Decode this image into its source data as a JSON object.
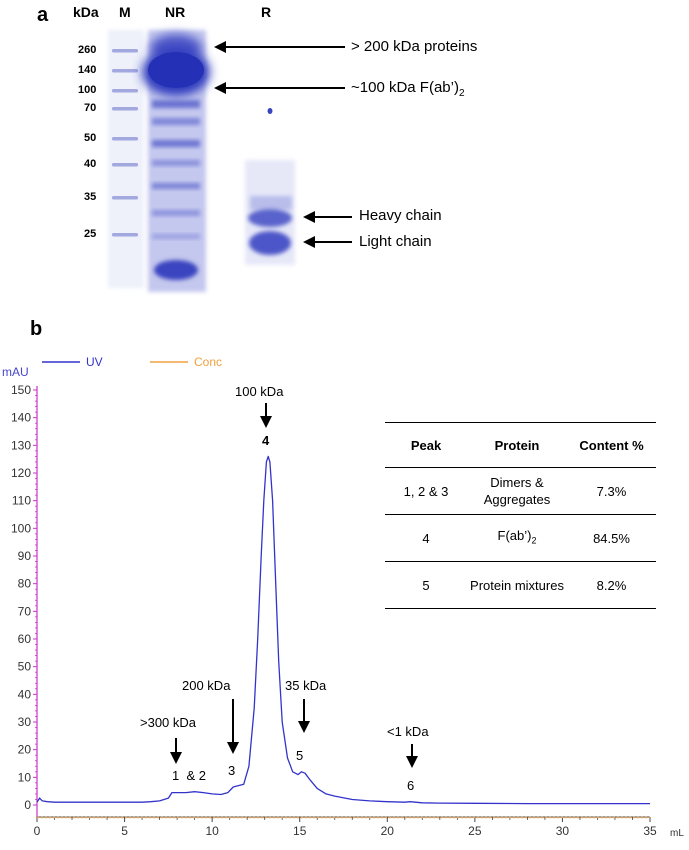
{
  "panel_a": {
    "label": "a",
    "kda_header": "kDa",
    "lane_labels": {
      "marker": "M",
      "non_reduced": "NR",
      "reduced": "R"
    },
    "marker_sizes": [
      "260",
      "140",
      "100",
      "70",
      "50",
      "40",
      "35",
      "25"
    ],
    "annotations": {
      "over200": "> 200 kDa proteins",
      "fab2_prefix": "~100 kDa F(ab’)",
      "fab2_sub": "2",
      "heavy": "Heavy chain",
      "light": "Light chain"
    }
  },
  "panel_b": {
    "label": "b",
    "legend": [
      {
        "name": "UV",
        "color": "#3333cc"
      },
      {
        "name": "Conc",
        "color": "#f0a040"
      }
    ],
    "table": {
      "headers": [
        "Peak",
        "Protein",
        "Content %"
      ],
      "rows": [
        {
          "peak": "1, 2 & 3",
          "protein": "Dimers & Aggregates",
          "content": "7.3%"
        },
        {
          "peak": "4",
          "protein_prefix": "F(ab’)",
          "protein_sub": "2",
          "content": "84.5%"
        },
        {
          "peak": "5",
          "protein": "Protein mixtures",
          "content": "8.2%"
        }
      ]
    },
    "arrow_labels": {
      "kda300": ">300 kDa",
      "kda200": "200 kDa",
      "kda100": "100 kDa",
      "kda35": "35 kDa",
      "kda1": "<1 kDa"
    },
    "peak_numbers": {
      "p12": "1  & 2",
      "p3": "3",
      "p4": "4",
      "p5": "5",
      "p6": "6"
    }
  },
  "chart_data": {
    "type": "line",
    "xlabel": "mL",
    "ylabel": "mAU",
    "xlim": [
      0,
      35
    ],
    "ylim": [
      0,
      150
    ],
    "xticks": [
      0,
      5,
      10,
      15,
      20,
      25,
      30,
      35
    ],
    "yticks": [
      0,
      10,
      20,
      30,
      40,
      50,
      60,
      70,
      80,
      90,
      100,
      110,
      120,
      130,
      140,
      150
    ],
    "grid": false,
    "legend_position": "top-left",
    "series": [
      {
        "name": "UV",
        "color": "#3333cc",
        "x": [
          0,
          0.15,
          0.3,
          0.6,
          1,
          2,
          3,
          4,
          5,
          6,
          6.5,
          7,
          7.5,
          7.7,
          8,
          8.5,
          9,
          9.5,
          10,
          10.5,
          10.9,
          11.2,
          11.5,
          11.8,
          12.1,
          12.4,
          12.6,
          12.8,
          12.95,
          13.1,
          13.2,
          13.3,
          13.45,
          13.6,
          13.8,
          14.0,
          14.3,
          14.6,
          14.9,
          15.1,
          15.3,
          15.6,
          16,
          16.5,
          17,
          18,
          19,
          20,
          21,
          21.3,
          21.6,
          22,
          23,
          25,
          28,
          30,
          32,
          34,
          35
        ],
        "y": [
          1,
          2.5,
          1.5,
          1.2,
          1,
          1,
          1,
          1,
          1,
          1,
          1.2,
          1.5,
          2.5,
          4.5,
          4.5,
          4.5,
          4.8,
          4.5,
          4,
          3.8,
          4.5,
          6.5,
          7,
          7.5,
          14,
          35,
          60,
          90,
          110,
          124,
          126,
          124,
          110,
          85,
          52,
          30,
          17,
          12,
          11,
          12,
          11.5,
          9,
          6,
          4,
          3.2,
          2,
          1.5,
          1.2,
          1.0,
          1.2,
          1.0,
          0.8,
          0.7,
          0.6,
          0.5,
          0.5,
          0.5,
          0.5,
          0.5
        ]
      },
      {
        "name": "Conc",
        "color": "#f0a040",
        "x": [
          0,
          35
        ],
        "y": [
          -1.8,
          -1.8
        ]
      }
    ],
    "annotations": [
      {
        "text": ">300 kDa",
        "x": 8.0
      },
      {
        "text": "200 kDa",
        "x": 11.2
      },
      {
        "text": "100 kDa",
        "x": 13.1
      },
      {
        "text": "35 kDa",
        "x": 15.2
      },
      {
        "text": "<1 kDa",
        "x": 21.5
      }
    ]
  }
}
